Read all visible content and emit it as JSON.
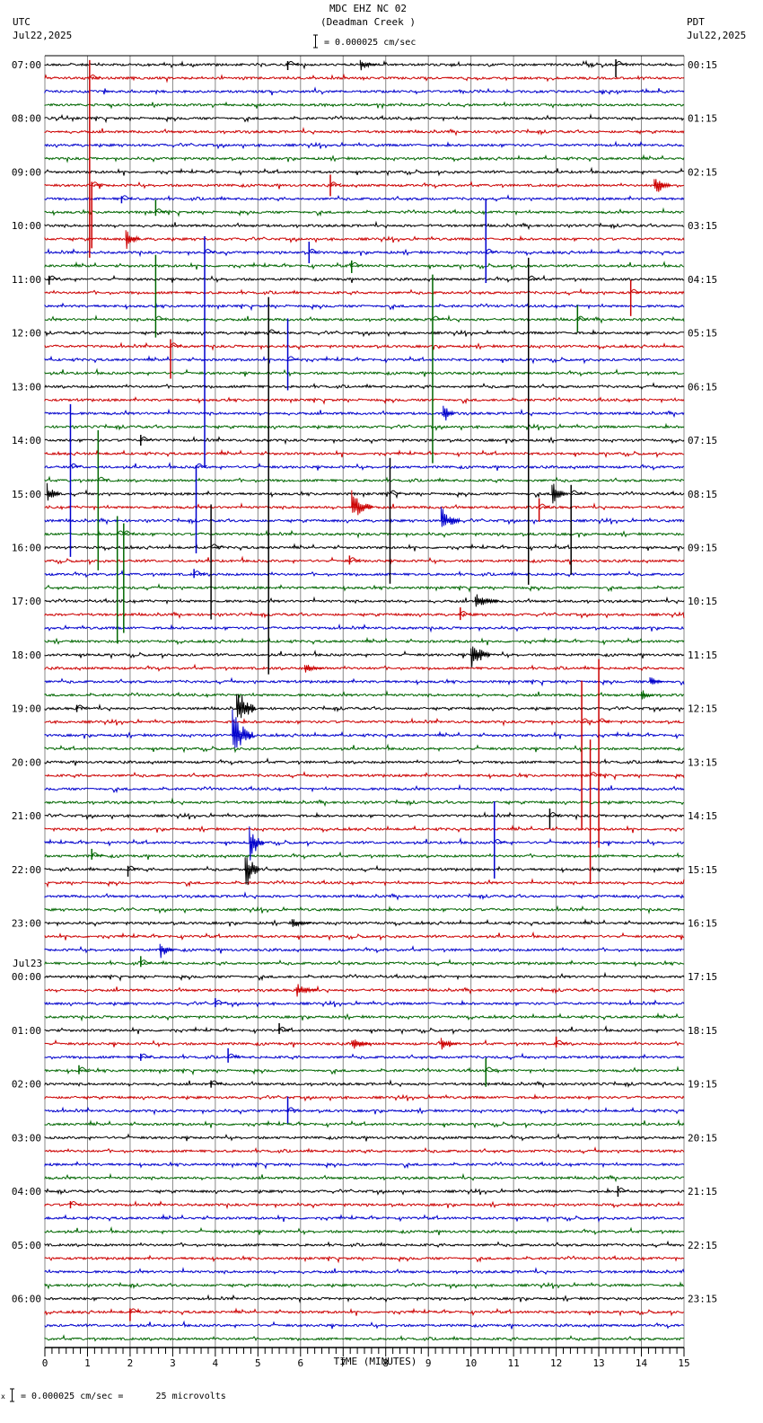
{
  "header": {
    "station": "MDC EHZ NC 02",
    "location": "(Deadman Creek )",
    "scale": "= 0.000025 cm/sec",
    "left_tz": "UTC",
    "left_date": "Jul22,2025",
    "right_tz": "PDT",
    "right_date": "Jul22,2025"
  },
  "footer": {
    "scale_note": "= 0.000025 cm/sec =      25 microvolts",
    "prefix": "x"
  },
  "colors": {
    "trace_cycle": [
      "#000000",
      "#cc0000",
      "#0000cc",
      "#006600"
    ],
    "grid": "#888888",
    "axis": "#000000"
  },
  "chart_data": {
    "type": "line",
    "title": "MDC EHZ NC 02 (Deadman Creek )",
    "subtitle": "= 0.000025 cm/sec",
    "xlabel": "TIME (MINUTES)",
    "ylabel": "",
    "x_ticks": [
      "0",
      "1",
      "2",
      "3",
      "4",
      "5",
      "6",
      "7",
      "8",
      "9",
      "10",
      "11",
      "12",
      "13",
      "14",
      "15"
    ],
    "xlim": [
      0,
      15
    ],
    "grid": true,
    "traces_per_hour": 4,
    "trace_minutes": 15,
    "left_labels": [
      {
        "row": 0,
        "text": "07:00"
      },
      {
        "row": 4,
        "text": "08:00"
      },
      {
        "row": 8,
        "text": "09:00"
      },
      {
        "row": 12,
        "text": "10:00"
      },
      {
        "row": 16,
        "text": "11:00"
      },
      {
        "row": 20,
        "text": "12:00"
      },
      {
        "row": 24,
        "text": "13:00"
      },
      {
        "row": 28,
        "text": "14:00"
      },
      {
        "row": 32,
        "text": "15:00"
      },
      {
        "row": 36,
        "text": "16:00"
      },
      {
        "row": 40,
        "text": "17:00"
      },
      {
        "row": 44,
        "text": "18:00"
      },
      {
        "row": 48,
        "text": "19:00"
      },
      {
        "row": 52,
        "text": "20:00"
      },
      {
        "row": 56,
        "text": "21:00"
      },
      {
        "row": 60,
        "text": "22:00"
      },
      {
        "row": 64,
        "text": "23:00"
      },
      {
        "row": 68,
        "text": "00:00",
        "date": "Jul23"
      },
      {
        "row": 72,
        "text": "01:00"
      },
      {
        "row": 76,
        "text": "02:00"
      },
      {
        "row": 80,
        "text": "03:00"
      },
      {
        "row": 84,
        "text": "04:00"
      },
      {
        "row": 88,
        "text": "05:00"
      },
      {
        "row": 92,
        "text": "06:00"
      }
    ],
    "right_labels": [
      {
        "row": 0,
        "text": "00:15"
      },
      {
        "row": 4,
        "text": "01:15"
      },
      {
        "row": 8,
        "text": "02:15"
      },
      {
        "row": 12,
        "text": "03:15"
      },
      {
        "row": 16,
        "text": "04:15"
      },
      {
        "row": 20,
        "text": "05:15"
      },
      {
        "row": 24,
        "text": "06:15"
      },
      {
        "row": 28,
        "text": "07:15"
      },
      {
        "row": 32,
        "text": "08:15"
      },
      {
        "row": 36,
        "text": "09:15"
      },
      {
        "row": 40,
        "text": "10:15"
      },
      {
        "row": 44,
        "text": "11:15"
      },
      {
        "row": 48,
        "text": "12:15"
      },
      {
        "row": 52,
        "text": "13:15"
      },
      {
        "row": 56,
        "text": "14:15"
      },
      {
        "row": 60,
        "text": "15:15"
      },
      {
        "row": 64,
        "text": "16:15"
      },
      {
        "row": 68,
        "text": "17:15"
      },
      {
        "row": 72,
        "text": "18:15"
      },
      {
        "row": 76,
        "text": "19:15"
      },
      {
        "row": 80,
        "text": "20:15"
      },
      {
        "row": 84,
        "text": "21:15"
      },
      {
        "row": 88,
        "text": "22:15"
      },
      {
        "row": 92,
        "text": "23:15"
      }
    ],
    "total_rows": 96,
    "events": [
      {
        "row": 0,
        "minute": 7.4,
        "type": "burst",
        "amp": 5,
        "dur": 0.4
      },
      {
        "row": 0,
        "minute": 13.4,
        "type": "spike",
        "up": 6,
        "down": 14
      },
      {
        "row": 0,
        "minute": 5.7,
        "type": "spike",
        "up": 4,
        "down": 6
      },
      {
        "row": 1,
        "minute": 1.05,
        "type": "spike",
        "up": 20,
        "down": 200
      },
      {
        "row": 9,
        "minute": 1.1,
        "type": "spike",
        "up": 4,
        "down": 70
      },
      {
        "row": 9,
        "minute": 6.7,
        "type": "spike",
        "up": 12,
        "down": 12
      },
      {
        "row": 9,
        "minute": 14.3,
        "type": "burst",
        "amp": 10,
        "dur": 0.4
      },
      {
        "row": 10,
        "minute": 1.8,
        "type": "spike",
        "up": 3,
        "down": 5
      },
      {
        "row": 11,
        "minute": 2.6,
        "type": "spike",
        "up": 14,
        "down": 4
      },
      {
        "row": 13,
        "minute": 1.9,
        "type": "burst",
        "amp": 9,
        "dur": 0.35
      },
      {
        "row": 14,
        "minute": 10.35,
        "type": "spike",
        "up": 60,
        "down": 34
      },
      {
        "row": 14,
        "minute": 6.2,
        "type": "spike",
        "up": 12,
        "down": 12
      },
      {
        "row": 15,
        "minute": 7.2,
        "type": "spike",
        "up": 6,
        "down": 8
      },
      {
        "row": 14,
        "minute": 3.75,
        "type": "spike",
        "up": 18,
        "down": 240
      },
      {
        "row": 16,
        "minute": 0.1,
        "type": "spike",
        "up": 4,
        "down": 6
      },
      {
        "row": 16,
        "minute": 11.35,
        "type": "spike",
        "up": 24,
        "down": 340
      },
      {
        "row": 17,
        "minute": 13.75,
        "type": "spike",
        "up": 14,
        "down": 26
      },
      {
        "row": 19,
        "minute": 2.6,
        "type": "spike",
        "up": 72,
        "down": 20
      },
      {
        "row": 19,
        "minute": 9.1,
        "type": "spike",
        "up": 50,
        "down": 160
      },
      {
        "row": 19,
        "minute": 12.5,
        "type": "spike",
        "up": 16,
        "down": 14
      },
      {
        "row": 20,
        "minute": 5.25,
        "type": "spike",
        "up": 40,
        "down": 380
      },
      {
        "row": 21,
        "minute": 2.95,
        "type": "spike",
        "up": 8,
        "down": 36
      },
      {
        "row": 22,
        "minute": 5.7,
        "type": "spike",
        "up": 46,
        "down": 34
      },
      {
        "row": 26,
        "minute": 9.35,
        "type": "burst",
        "amp": 10,
        "dur": 0.25
      },
      {
        "row": 28,
        "minute": 2.25,
        "type": "spike",
        "up": 6,
        "down": 6
      },
      {
        "row": 30,
        "minute": 0.6,
        "type": "spike",
        "up": 70,
        "down": 100
      },
      {
        "row": 30,
        "minute": 3.55,
        "type": "spike",
        "up": 2,
        "down": 96
      },
      {
        "row": 31,
        "minute": 1.25,
        "type": "spike",
        "up": 56,
        "down": 100
      },
      {
        "row": 32,
        "minute": 0.05,
        "type": "burst",
        "amp": 9,
        "dur": 0.3
      },
      {
        "row": 32,
        "minute": 11.9,
        "type": "burst",
        "amp": 14,
        "dur": 0.3
      },
      {
        "row": 32,
        "minute": 8.1,
        "type": "spike",
        "up": 40,
        "down": 100
      },
      {
        "row": 32,
        "minute": 12.35,
        "type": "spike",
        "up": 10,
        "down": 90
      },
      {
        "row": 33,
        "minute": 7.2,
        "type": "burst",
        "amp": 14,
        "dur": 0.5
      },
      {
        "row": 33,
        "minute": 11.6,
        "type": "spike",
        "up": 10,
        "down": 16
      },
      {
        "row": 34,
        "minute": 9.3,
        "type": "burst",
        "amp": 12,
        "dur": 0.45
      },
      {
        "row": 35,
        "minute": 1.7,
        "type": "spike",
        "up": 20,
        "down": 120
      },
      {
        "row": 35,
        "minute": 1.85,
        "type": "spike",
        "up": 12,
        "down": 110
      },
      {
        "row": 36,
        "minute": 3.9,
        "type": "spike",
        "up": 48,
        "down": 80
      },
      {
        "row": 37,
        "minute": 7.15,
        "type": "spike",
        "up": 6,
        "down": 4
      },
      {
        "row": 38,
        "minute": 3.5,
        "type": "spike",
        "up": 6,
        "down": 4
      },
      {
        "row": 40,
        "minute": 10.1,
        "type": "burst",
        "amp": 7,
        "dur": 0.55
      },
      {
        "row": 41,
        "minute": 9.75,
        "type": "spike",
        "up": 8,
        "down": 6
      },
      {
        "row": 44,
        "minute": 10.0,
        "type": "burst",
        "amp": 14,
        "dur": 0.45
      },
      {
        "row": 45,
        "minute": 6.1,
        "type": "burst",
        "amp": 5,
        "dur": 0.45
      },
      {
        "row": 46,
        "minute": 14.2,
        "type": "burst",
        "amp": 5,
        "dur": 0.3
      },
      {
        "row": 47,
        "minute": 14.0,
        "type": "burst",
        "amp": 5,
        "dur": 0.3
      },
      {
        "row": 48,
        "minute": 4.5,
        "type": "burst",
        "amp": 20,
        "dur": 0.45
      },
      {
        "row": 48,
        "minute": 0.75,
        "type": "spike",
        "up": 4,
        "down": 4
      },
      {
        "row": 49,
        "minute": 12.6,
        "type": "spike",
        "up": 46,
        "down": 120
      },
      {
        "row": 49,
        "minute": 13.0,
        "type": "spike",
        "up": 70,
        "down": 140
      },
      {
        "row": 50,
        "minute": 4.4,
        "type": "burst",
        "amp": 22,
        "dur": 0.5
      },
      {
        "row": 53,
        "minute": 12.8,
        "type": "spike",
        "up": 40,
        "down": 120
      },
      {
        "row": 56,
        "minute": 11.85,
        "type": "spike",
        "up": 8,
        "down": 14
      },
      {
        "row": 58,
        "minute": 10.55,
        "type": "spike",
        "up": 46,
        "down": 40
      },
      {
        "row": 58,
        "minute": 4.8,
        "type": "burst",
        "amp": 18,
        "dur": 0.35
      },
      {
        "row": 59,
        "minute": 1.1,
        "type": "spike",
        "up": 8,
        "down": 4
      },
      {
        "row": 60,
        "minute": 4.7,
        "type": "burst",
        "amp": 20,
        "dur": 0.35
      },
      {
        "row": 60,
        "minute": 1.95,
        "type": "spike",
        "up": 4,
        "down": 8
      },
      {
        "row": 64,
        "minute": 5.8,
        "type": "burst",
        "amp": 4,
        "dur": 0.45
      },
      {
        "row": 66,
        "minute": 2.7,
        "type": "burst",
        "amp": 8,
        "dur": 0.3
      },
      {
        "row": 67,
        "minute": 2.25,
        "type": "spike",
        "up": 8,
        "down": 4
      },
      {
        "row": 69,
        "minute": 5.9,
        "type": "burst",
        "amp": 6,
        "dur": 0.5
      },
      {
        "row": 70,
        "minute": 4.0,
        "type": "spike",
        "up": 6,
        "down": 4
      },
      {
        "row": 72,
        "minute": 5.5,
        "type": "spike",
        "up": 8,
        "down": 4
      },
      {
        "row": 73,
        "minute": 7.2,
        "type": "burst",
        "amp": 6,
        "dur": 0.45
      },
      {
        "row": 73,
        "minute": 9.3,
        "type": "burst",
        "amp": 6,
        "dur": 0.4
      },
      {
        "row": 73,
        "minute": 12.0,
        "type": "spike",
        "up": 8,
        "down": 4
      },
      {
        "row": 74,
        "minute": 4.3,
        "type": "spike",
        "up": 10,
        "down": 6
      },
      {
        "row": 74,
        "minute": 2.25,
        "type": "spike",
        "up": 4,
        "down": 4
      },
      {
        "row": 75,
        "minute": 0.8,
        "type": "spike",
        "up": 6,
        "down": 4
      },
      {
        "row": 75,
        "minute": 10.35,
        "type": "spike",
        "up": 14,
        "down": 18
      },
      {
        "row": 76,
        "minute": 3.9,
        "type": "spike",
        "up": 4,
        "down": 4
      },
      {
        "row": 78,
        "minute": 5.7,
        "type": "spike",
        "up": 16,
        "down": 14
      },
      {
        "row": 84,
        "minute": 13.45,
        "type": "spike",
        "up": 6,
        "down": 6
      },
      {
        "row": 85,
        "minute": 0.6,
        "type": "spike",
        "up": 4,
        "down": 4
      },
      {
        "row": 93,
        "minute": 2.0,
        "type": "spike",
        "up": 4,
        "down": 10
      }
    ]
  }
}
